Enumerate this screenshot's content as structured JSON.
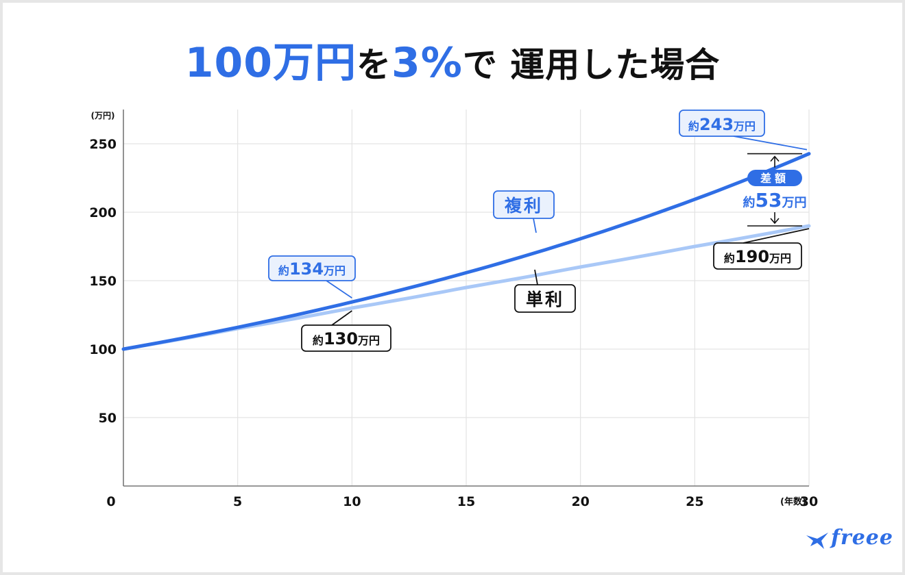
{
  "title": {
    "part1": "100万円",
    "part2": "を",
    "part3": "3%",
    "part4": "で 運用した場合"
  },
  "colors": {
    "compound": "#2f6ee5",
    "simple": "#a9c8f7",
    "label_border_dark": "#111111",
    "label_fill_blue": "#eaf1fd",
    "grid": "#e3e3e3",
    "axis": "#777777"
  },
  "chart_data": {
    "type": "line",
    "title": "100万円を3%で運用した場合",
    "xlabel": "(年数)",
    "ylabel": "(万円)",
    "xlim": [
      0,
      30
    ],
    "ylim": [
      0,
      250
    ],
    "x_ticks": [
      "0",
      "5",
      "10",
      "15",
      "20",
      "25",
      "30"
    ],
    "y_ticks": [
      "50",
      "100",
      "150",
      "200",
      "250"
    ],
    "grid": true,
    "series": [
      {
        "name": "複利",
        "x": [
          0,
          5,
          10,
          15,
          20,
          25,
          30
        ],
        "values": [
          100,
          115.9,
          134.4,
          155.8,
          180.6,
          209.4,
          242.7
        ]
      },
      {
        "name": "単利",
        "x": [
          0,
          5,
          10,
          15,
          20,
          25,
          30
        ],
        "values": [
          100,
          115,
          130,
          145,
          160,
          175,
          190
        ]
      }
    ],
    "annotations": {
      "compound_10": {
        "prefix": "約",
        "value": "134",
        "unit": "万円"
      },
      "compound_30": {
        "prefix": "約",
        "value": "243",
        "unit": "万円"
      },
      "simple_10": {
        "prefix": "約",
        "value": "130",
        "unit": "万円"
      },
      "simple_30": {
        "prefix": "約",
        "value": "190",
        "unit": "万円"
      },
      "compound_label": "複利",
      "simple_label": "単利",
      "diff_badge": "差額",
      "diff": {
        "prefix": "約",
        "value": "53",
        "unit": "万円"
      }
    }
  },
  "logo": {
    "text": "freee",
    "icon": "bird-icon"
  }
}
